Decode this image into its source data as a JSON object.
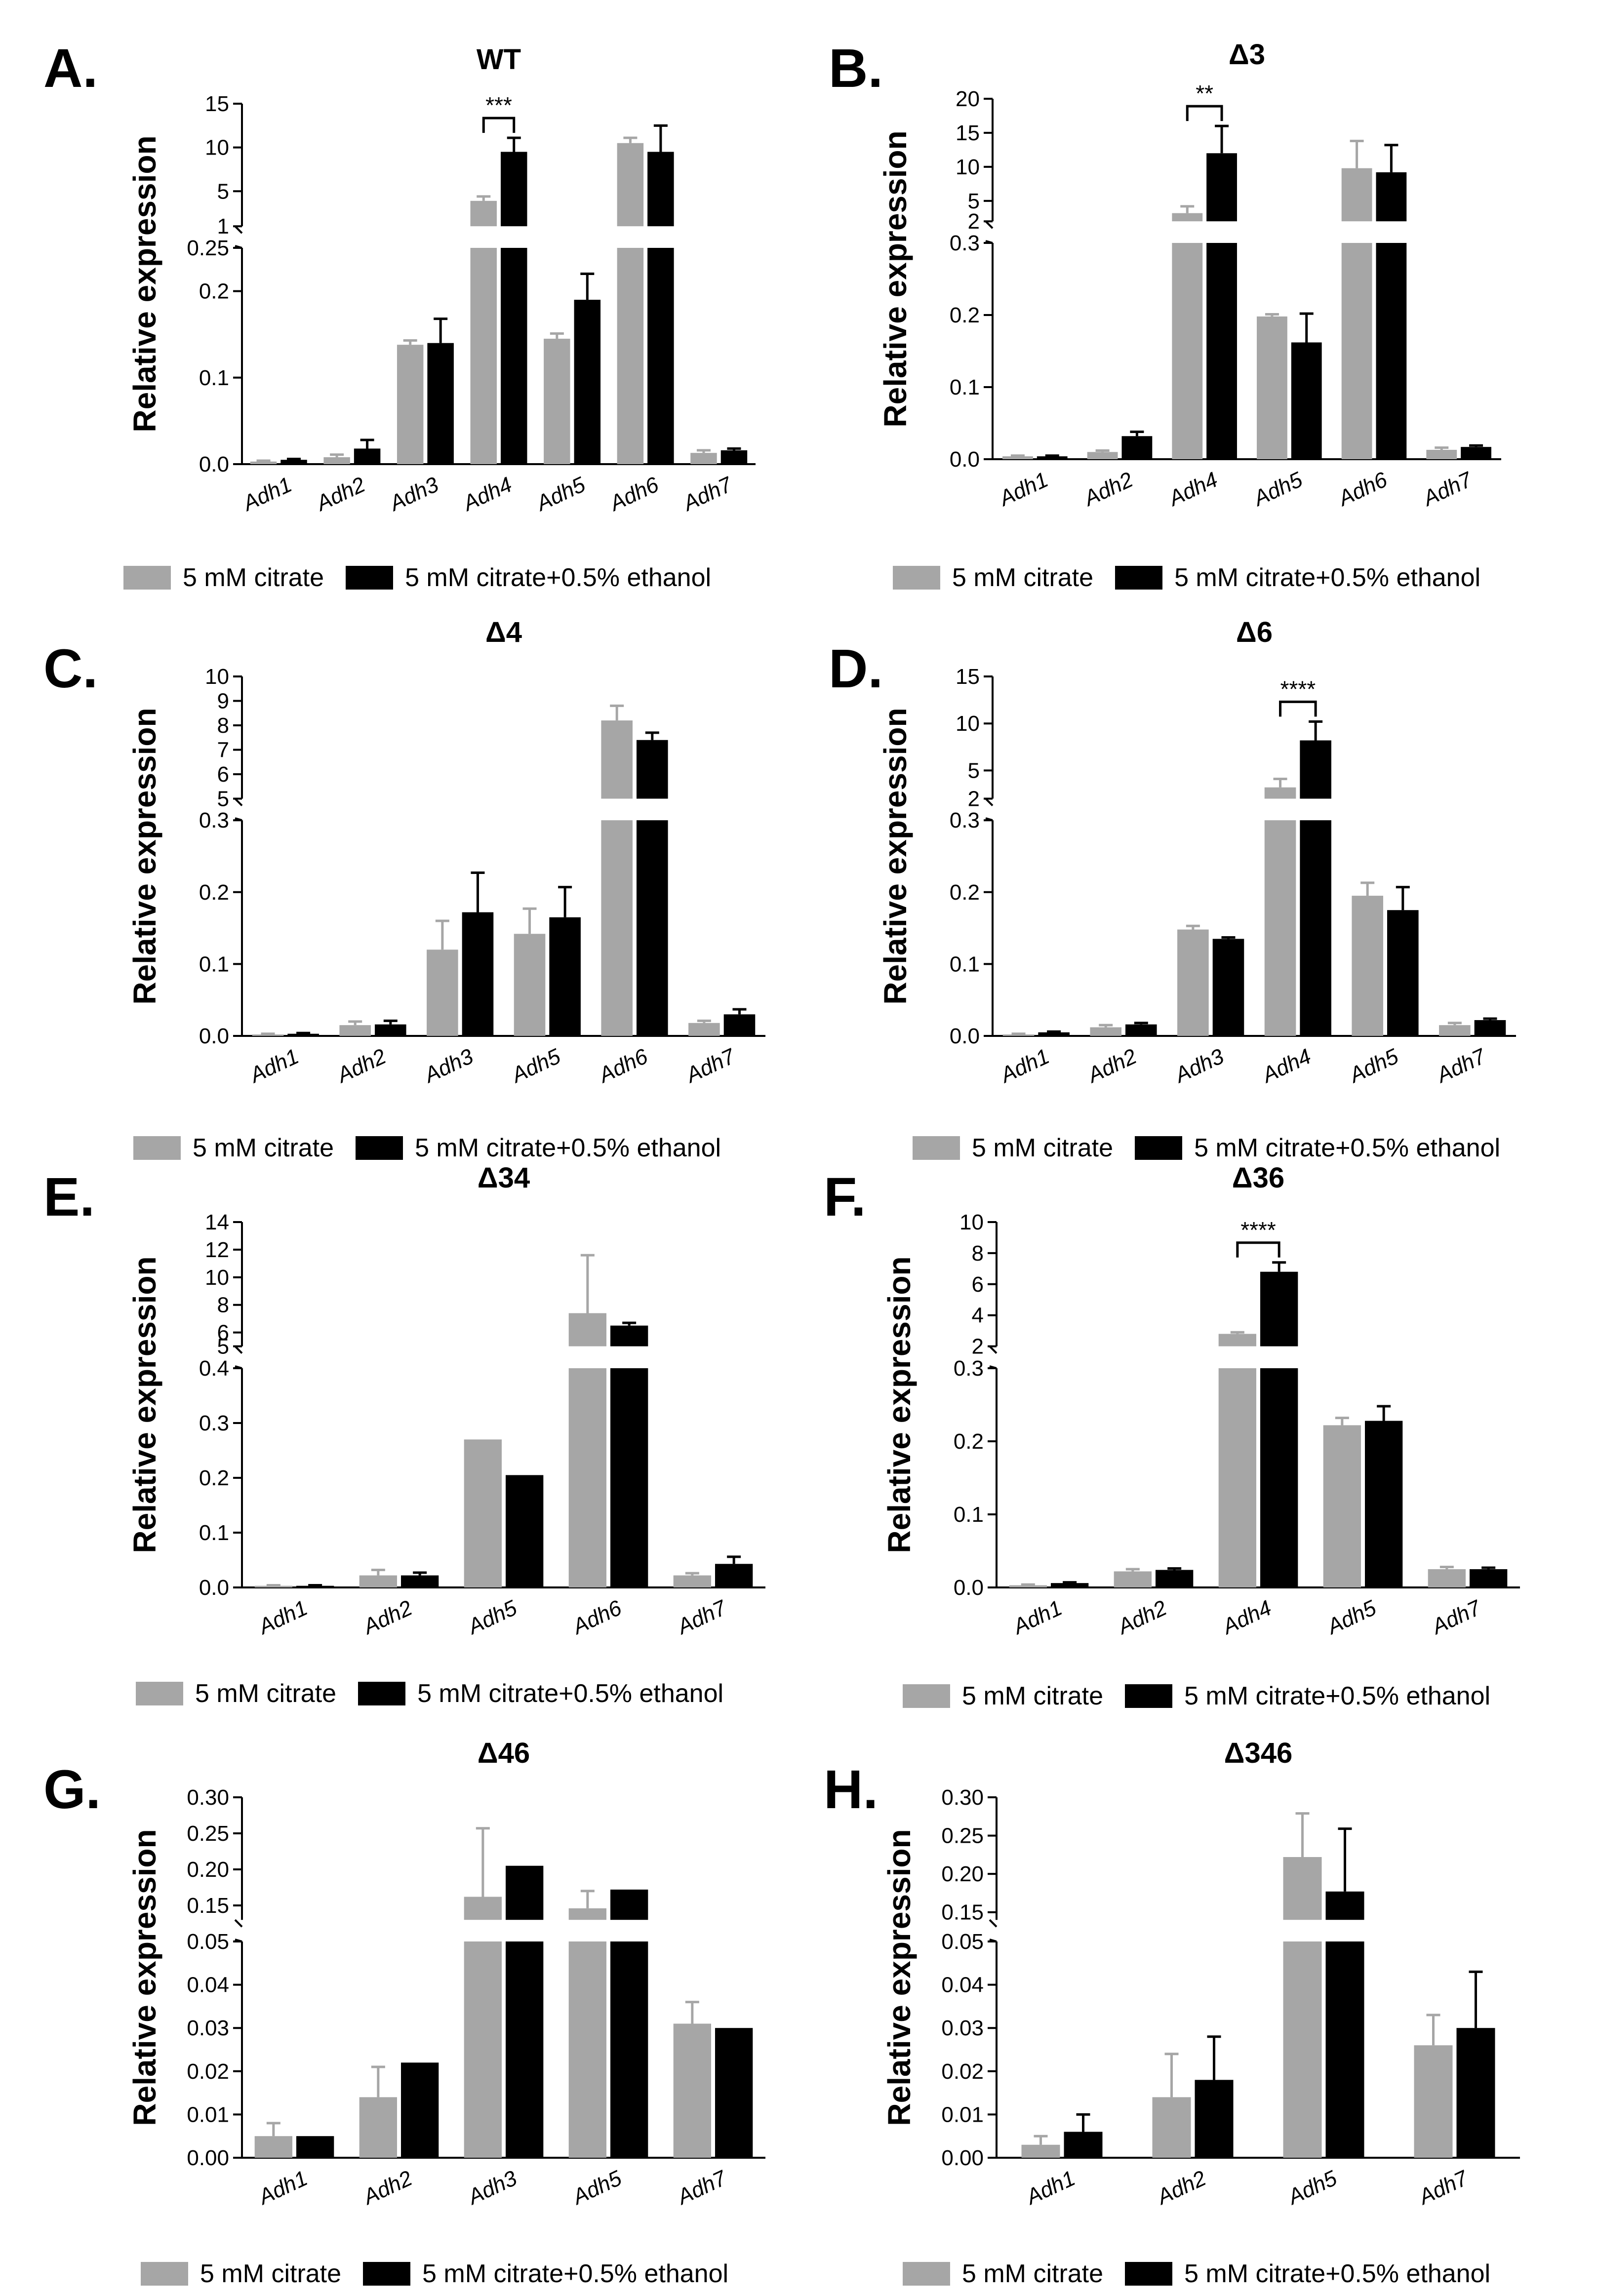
{
  "colors": {
    "citrate": "#a6a6a6",
    "ethanol": "#000000"
  },
  "legend": {
    "citrate": "5 mM citrate",
    "ethanol": "5 mM citrate+0.5% ethanol"
  },
  "y_label": "Relative expression",
  "chart_data": [
    {
      "panel": "A.",
      "title": "WT",
      "type": "bar",
      "categories": [
        "Adh1",
        "Adh2",
        "Adh3",
        "Adh4",
        "Adh5",
        "Adh6",
        "Adh7"
      ],
      "series": [
        {
          "name": "5 mM citrate",
          "values": [
            0.003,
            0.008,
            0.138,
            3.9,
            0.145,
            10.5,
            0.013
          ],
          "errors": [
            0.001,
            0.003,
            0.005,
            0.5,
            0.006,
            0.6,
            0.003
          ]
        },
        {
          "name": "5 mM citrate+0.5% ethanol",
          "values": [
            0.005,
            0.018,
            0.14,
            9.5,
            0.19,
            9.5,
            0.016
          ],
          "errors": [
            0.001,
            0.01,
            0.028,
            1.6,
            0.03,
            3.0,
            0.002
          ]
        }
      ],
      "axis_break": {
        "lower": [
          0,
          0.25
        ],
        "upper": [
          1,
          15
        ]
      },
      "lower_ticks": [
        "0.0",
        "0.1",
        "0.2",
        "0.25"
      ],
      "upper_ticks": [
        "1",
        "5",
        "10",
        "15"
      ],
      "significance": {
        "category": "Adh4",
        "label": "***"
      }
    },
    {
      "panel": "B.",
      "title": "Δ3",
      "type": "bar",
      "categories": [
        "Adh1",
        "Adh2",
        "Adh4",
        "Adh5",
        "Adh6",
        "Adh7"
      ],
      "series": [
        {
          "name": "5 mM citrate",
          "values": [
            0.004,
            0.01,
            3.2,
            0.198,
            9.8,
            0.013
          ],
          "errors": [
            0.001,
            0.002,
            1.0,
            0.003,
            4.0,
            0.003
          ]
        },
        {
          "name": "5 mM citrate+0.5% ethanol",
          "values": [
            0.004,
            0.032,
            12.0,
            0.162,
            9.2,
            0.017
          ],
          "errors": [
            0.001,
            0.006,
            4.0,
            0.04,
            4.0,
            0.002
          ]
        }
      ],
      "axis_break": {
        "lower": [
          0,
          0.3
        ],
        "upper": [
          2,
          20
        ]
      },
      "lower_ticks": [
        "0.0",
        "0.1",
        "0.2",
        "0.3"
      ],
      "upper_ticks": [
        "2",
        "5",
        "10",
        "15",
        "20"
      ],
      "significance": {
        "category": "Adh4",
        "label": "**"
      }
    },
    {
      "panel": "C.",
      "title": "Δ4",
      "type": "bar",
      "categories": [
        "Adh1",
        "Adh2",
        "Adh3",
        "Adh5",
        "Adh6",
        "Adh7"
      ],
      "series": [
        {
          "name": "5 mM citrate",
          "values": [
            0.002,
            0.015,
            0.12,
            0.142,
            8.2,
            0.018
          ],
          "errors": [
            0.001,
            0.005,
            0.04,
            0.035,
            0.6,
            0.003
          ]
        },
        {
          "name": "5 mM citrate+0.5% ethanol",
          "values": [
            0.003,
            0.016,
            0.172,
            0.165,
            7.4,
            0.03
          ],
          "errors": [
            0.001,
            0.005,
            0.055,
            0.042,
            0.3,
            0.007
          ]
        }
      ],
      "axis_break": {
        "lower": [
          0,
          0.3
        ],
        "upper": [
          5,
          10
        ]
      },
      "lower_ticks": [
        "0.0",
        "0.1",
        "0.2",
        "0.3"
      ],
      "upper_ticks": [
        "5",
        "6",
        "7",
        "8",
        "9",
        "10"
      ],
      "significance": null
    },
    {
      "panel": "D.",
      "title": "Δ6",
      "type": "bar",
      "categories": [
        "Adh1",
        "Adh2",
        "Adh3",
        "Adh4",
        "Adh5",
        "Adh7"
      ],
      "series": [
        {
          "name": "5 mM citrate",
          "values": [
            0.002,
            0.012,
            0.148,
            3.2,
            0.195,
            0.015
          ],
          "errors": [
            0.001,
            0.003,
            0.005,
            0.9,
            0.018,
            0.003
          ]
        },
        {
          "name": "5 mM citrate+0.5% ethanol",
          "values": [
            0.005,
            0.016,
            0.135,
            8.2,
            0.175,
            0.022
          ],
          "errors": [
            0.001,
            0.002,
            0.002,
            2.0,
            0.032,
            0.002
          ]
        }
      ],
      "axis_break": {
        "lower": [
          0,
          0.3
        ],
        "upper": [
          2,
          15
        ]
      },
      "lower_ticks": [
        "0.0",
        "0.1",
        "0.2",
        "0.3"
      ],
      "upper_ticks": [
        "2",
        "5",
        "10",
        "15"
      ],
      "significance": {
        "category": "Adh4",
        "label": "****"
      }
    },
    {
      "panel": "E.",
      "title": "Δ34",
      "type": "bar",
      "categories": [
        "Adh1",
        "Adh2",
        "Adh5",
        "Adh6",
        "Adh7"
      ],
      "series": [
        {
          "name": "5 mM citrate",
          "values": [
            0.003,
            0.022,
            0.27,
            7.4,
            0.022
          ],
          "errors": [
            0.001,
            0.01,
            0.0,
            4.2,
            0.004
          ]
        },
        {
          "name": "5 mM citrate+0.5% ethanol",
          "values": [
            0.003,
            0.022,
            0.205,
            6.5,
            0.043
          ],
          "errors": [
            0.001,
            0.005,
            0.0,
            0.2,
            0.013
          ]
        }
      ],
      "axis_break": {
        "lower": [
          0,
          0.4
        ],
        "upper": [
          5,
          14
        ]
      },
      "lower_ticks": [
        "0.0",
        "0.1",
        "0.2",
        "0.3",
        "0.4"
      ],
      "upper_ticks": [
        "5",
        "6",
        "8",
        "10",
        "12",
        "14"
      ],
      "significance": null
    },
    {
      "panel": "F.",
      "title": "Δ36",
      "type": "bar",
      "categories": [
        "Adh1",
        "Adh2",
        "Adh4",
        "Adh5",
        "Adh7"
      ],
      "series": [
        {
          "name": "5 mM citrate",
          "values": [
            0.003,
            0.022,
            2.8,
            0.222,
            0.025
          ],
          "errors": [
            0.001,
            0.003,
            0.1,
            0.01,
            0.003
          ]
        },
        {
          "name": "5 mM citrate+0.5% ethanol",
          "values": [
            0.006,
            0.024,
            6.8,
            0.228,
            0.025
          ],
          "errors": [
            0.001,
            0.002,
            0.6,
            0.02,
            0.002
          ]
        }
      ],
      "axis_break": {
        "lower": [
          0,
          0.3
        ],
        "upper": [
          2,
          10
        ]
      },
      "lower_ticks": [
        "0.0",
        "0.1",
        "0.2",
        "0.3"
      ],
      "upper_ticks": [
        "2",
        "4",
        "6",
        "8",
        "10"
      ],
      "significance": {
        "category": "Adh4",
        "label": "****"
      }
    },
    {
      "panel": "G.",
      "title": "Δ46",
      "type": "bar",
      "categories": [
        "Adh1",
        "Adh2",
        "Adh3",
        "Adh5",
        "Adh7"
      ],
      "series": [
        {
          "name": "5 mM citrate",
          "values": [
            0.005,
            0.014,
            0.162,
            0.146,
            0.031
          ],
          "errors": [
            0.003,
            0.007,
            0.095,
            0.024,
            0.005
          ]
        },
        {
          "name": "5 mM citrate+0.5% ethanol",
          "values": [
            0.005,
            0.022,
            0.205,
            0.172,
            0.03
          ],
          "errors": [
            0.0,
            0.0,
            0.0,
            0.0,
            0.0
          ]
        }
      ],
      "axis_break": {
        "lower": [
          0,
          0.05
        ],
        "upper": [
          0.13,
          0.3
        ]
      },
      "lower_ticks": [
        "0.00",
        "0.01",
        "0.02",
        "0.03",
        "0.04",
        "0.05"
      ],
      "upper_ticks": [
        "0.15",
        "0.20",
        "0.25",
        "0.30"
      ],
      "significance": null
    },
    {
      "panel": "H.",
      "title": "Δ346",
      "type": "bar",
      "categories": [
        "Adh1",
        "Adh2",
        "Adh5",
        "Adh7"
      ],
      "series": [
        {
          "name": "5 mM citrate",
          "values": [
            0.003,
            0.014,
            0.222,
            0.026
          ],
          "errors": [
            0.002,
            0.01,
            0.057,
            0.007
          ]
        },
        {
          "name": "5 mM citrate+0.5% ethanol",
          "values": [
            0.006,
            0.018,
            0.177,
            0.03
          ],
          "errors": [
            0.004,
            0.01,
            0.082,
            0.013
          ]
        }
      ],
      "axis_break": {
        "lower": [
          0,
          0.05
        ],
        "upper": [
          0.14,
          0.3
        ]
      },
      "lower_ticks": [
        "0.00",
        "0.01",
        "0.02",
        "0.03",
        "0.04",
        "0.05"
      ],
      "upper_ticks": [
        "0.15",
        "0.20",
        "0.25",
        "0.30"
      ],
      "significance": null
    }
  ]
}
